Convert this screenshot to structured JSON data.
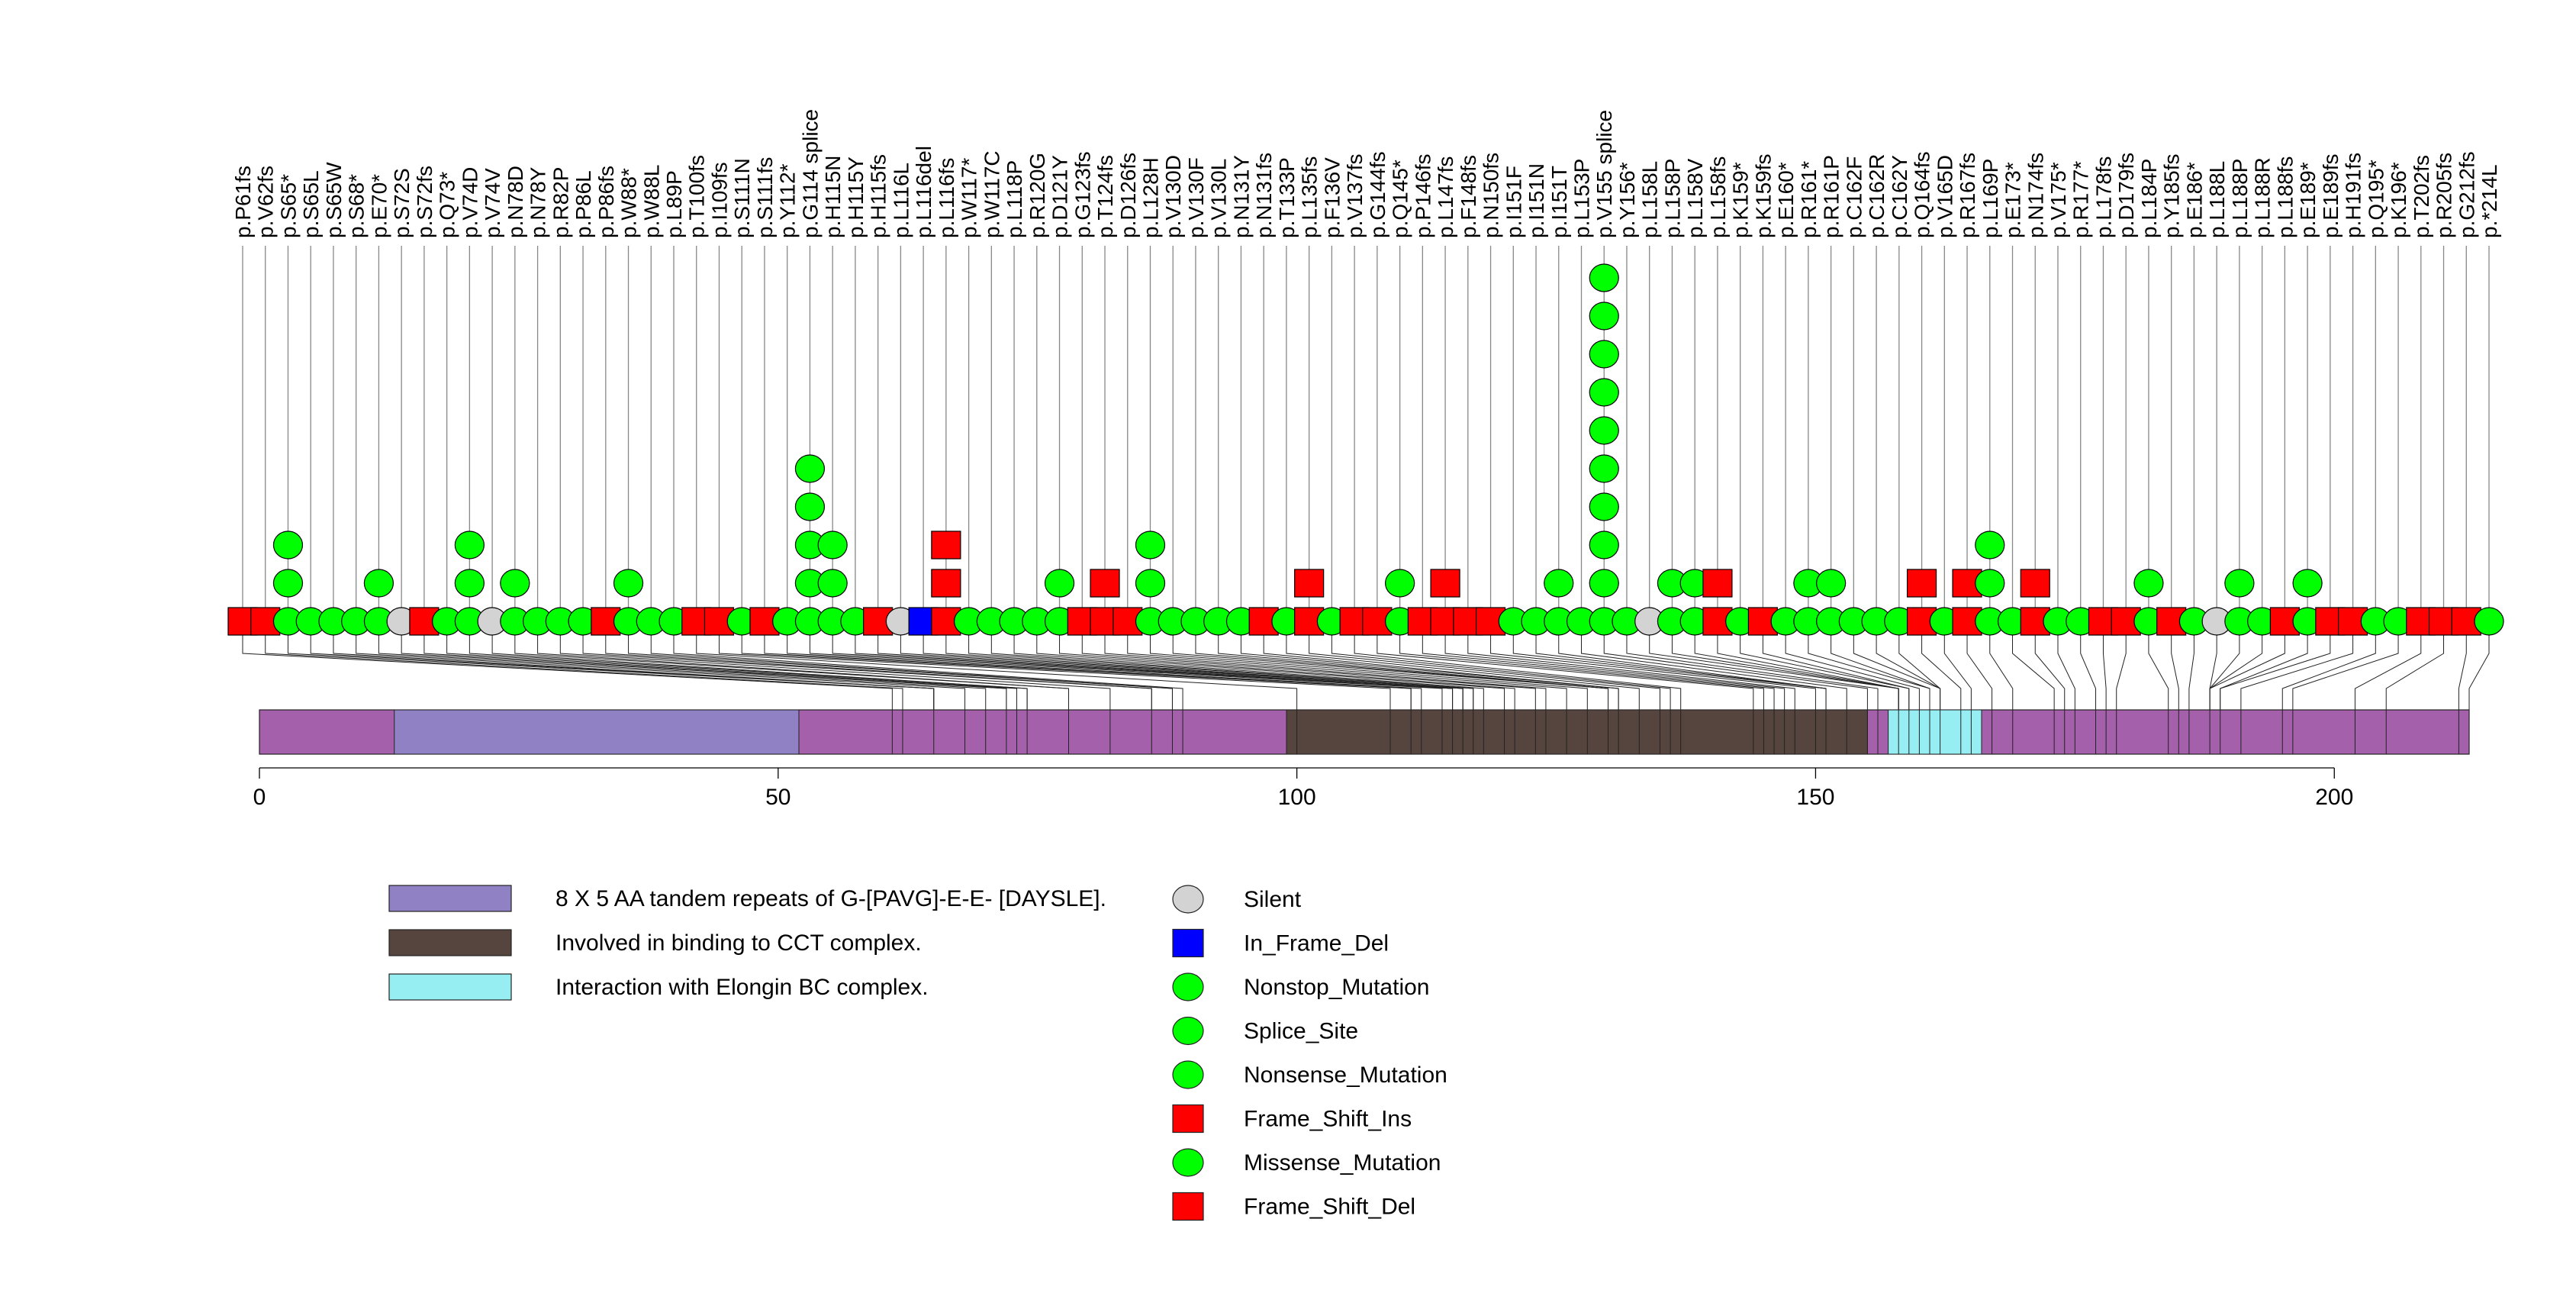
{
  "chart_data": {
    "type": "lollipop",
    "title": "",
    "xlabel": "",
    "ylabel": "",
    "x_ticks": [
      0,
      50,
      100,
      150,
      200
    ],
    "xlim": [
      0,
      213
    ],
    "protein_length": 213,
    "domains": [
      {
        "name": "8 X 5 AA tandem repeats of G-[PAVG]-E-E- [DAYSLE].",
        "start": 13,
        "end": 52,
        "color": "#9080C4"
      },
      {
        "name": "Involved in binding to CCT complex.",
        "start": 99,
        "end": 155,
        "color": "#56453E"
      },
      {
        "name": "Interaction with Elongin BC complex.",
        "start": 157,
        "end": 166,
        "color": "#96EEF2"
      }
    ],
    "mutation_types": [
      {
        "type": "Silent",
        "shape": "circle",
        "color": "#D3D3D3"
      },
      {
        "type": "In_Frame_Del",
        "shape": "square",
        "color": "#0000FF"
      },
      {
        "type": "Nonstop_Mutation",
        "shape": "circle",
        "color": "#00FF00"
      },
      {
        "type": "Splice_Site",
        "shape": "circle",
        "color": "#00FF00"
      },
      {
        "type": "Nonsense_Mutation",
        "shape": "circle",
        "color": "#00FF00"
      },
      {
        "type": "Frame_Shift_Ins",
        "shape": "square",
        "color": "#FF0000"
      },
      {
        "type": "Missense_Mutation",
        "shape": "circle",
        "color": "#00FF00"
      },
      {
        "type": "Frame_Shift_Del",
        "shape": "square",
        "color": "#FF0000"
      }
    ],
    "mutations": [
      {
        "label": "p.P61fs",
        "pos": 61,
        "type": "Frame_Shift_Del",
        "count": 1
      },
      {
        "label": "p.V62fs",
        "pos": 62,
        "type": "Frame_Shift_Del",
        "count": 1
      },
      {
        "label": "p.S65*",
        "pos": 65,
        "type": "Nonsense_Mutation",
        "count": 3
      },
      {
        "label": "p.S65L",
        "pos": 65,
        "type": "Missense_Mutation",
        "count": 1
      },
      {
        "label": "p.S65W",
        "pos": 65,
        "type": "Missense_Mutation",
        "count": 1
      },
      {
        "label": "p.S68*",
        "pos": 68,
        "type": "Nonsense_Mutation",
        "count": 1
      },
      {
        "label": "p.E70*",
        "pos": 70,
        "type": "Nonsense_Mutation",
        "count": 2
      },
      {
        "label": "p.S72S",
        "pos": 72,
        "type": "Silent",
        "count": 1
      },
      {
        "label": "p.S72fs",
        "pos": 72,
        "type": "Frame_Shift_Del",
        "count": 1
      },
      {
        "label": "p.Q73*",
        "pos": 73,
        "type": "Nonsense_Mutation",
        "count": 1
      },
      {
        "label": "p.V74D",
        "pos": 74,
        "type": "Missense_Mutation",
        "count": 3
      },
      {
        "label": "p.V74V",
        "pos": 74,
        "type": "Silent",
        "count": 1
      },
      {
        "label": "p.N78D",
        "pos": 78,
        "type": "Missense_Mutation",
        "count": 2
      },
      {
        "label": "p.N78Y",
        "pos": 78,
        "type": "Missense_Mutation",
        "count": 1
      },
      {
        "label": "p.R82P",
        "pos": 82,
        "type": "Missense_Mutation",
        "count": 1
      },
      {
        "label": "p.P86L",
        "pos": 86,
        "type": "Missense_Mutation",
        "count": 1
      },
      {
        "label": "p.P86fs",
        "pos": 86,
        "type": "Frame_Shift_Del",
        "count": 1
      },
      {
        "label": "p.W88*",
        "pos": 88,
        "type": "Nonsense_Mutation",
        "count": 2
      },
      {
        "label": "p.W88L",
        "pos": 88,
        "type": "Missense_Mutation",
        "count": 1
      },
      {
        "label": "p.L89P",
        "pos": 89,
        "type": "Missense_Mutation",
        "count": 1
      },
      {
        "label": "p.T100fs",
        "pos": 100,
        "type": "Frame_Shift_Del",
        "count": 1
      },
      {
        "label": "p.I109fs",
        "pos": 109,
        "type": "Frame_Shift_Del",
        "count": 1
      },
      {
        "label": "p.S111N",
        "pos": 111,
        "type": "Missense_Mutation",
        "count": 1
      },
      {
        "label": "p.S111fs",
        "pos": 111,
        "type": "Frame_Shift_Del",
        "count": 1
      },
      {
        "label": "p.Y112*",
        "pos": 112,
        "type": "Nonsense_Mutation",
        "count": 1
      },
      {
        "label": "p.G114_splice",
        "pos": 114,
        "type": "Splice_Site",
        "count": 5
      },
      {
        "label": "p.H115N",
        "pos": 115,
        "type": "Missense_Mutation",
        "count": 3
      },
      {
        "label": "p.H115Y",
        "pos": 115,
        "type": "Missense_Mutation",
        "count": 1
      },
      {
        "label": "p.H115fs",
        "pos": 115,
        "type": "Frame_Shift_Del",
        "count": 1
      },
      {
        "label": "p.L116L",
        "pos": 116,
        "type": "Silent",
        "count": 1
      },
      {
        "label": "p.L116del",
        "pos": 116,
        "type": "In_Frame_Del",
        "count": 1
      },
      {
        "label": "p.L116fs",
        "pos": 116,
        "type": "Frame_Shift_Ins",
        "count": 3
      },
      {
        "label": "p.W117*",
        "pos": 117,
        "type": "Nonsense_Mutation",
        "count": 1
      },
      {
        "label": "p.W117C",
        "pos": 117,
        "type": "Missense_Mutation",
        "count": 1
      },
      {
        "label": "p.L118P",
        "pos": 118,
        "type": "Missense_Mutation",
        "count": 1
      },
      {
        "label": "p.R120G",
        "pos": 120,
        "type": "Missense_Mutation",
        "count": 1
      },
      {
        "label": "p.D121Y",
        "pos": 121,
        "type": "Missense_Mutation",
        "count": 2
      },
      {
        "label": "p.G123fs",
        "pos": 123,
        "type": "Frame_Shift_Del",
        "count": 1
      },
      {
        "label": "p.T124fs",
        "pos": 124,
        "type": "Frame_Shift_Ins",
        "count": 2
      },
      {
        "label": "p.D126fs",
        "pos": 126,
        "type": "Frame_Shift_Del",
        "count": 1
      },
      {
        "label": "p.L128H",
        "pos": 128,
        "type": "Missense_Mutation",
        "count": 3
      },
      {
        "label": "p.V130D",
        "pos": 130,
        "type": "Missense_Mutation",
        "count": 1
      },
      {
        "label": "p.V130F",
        "pos": 130,
        "type": "Missense_Mutation",
        "count": 1
      },
      {
        "label": "p.V130L",
        "pos": 130,
        "type": "Missense_Mutation",
        "count": 1
      },
      {
        "label": "p.N131Y",
        "pos": 131,
        "type": "Missense_Mutation",
        "count": 1
      },
      {
        "label": "p.N131fs",
        "pos": 131,
        "type": "Frame_Shift_Del",
        "count": 1
      },
      {
        "label": "p.T133P",
        "pos": 133,
        "type": "Missense_Mutation",
        "count": 1
      },
      {
        "label": "p.L135fs",
        "pos": 135,
        "type": "Frame_Shift_Ins",
        "count": 2
      },
      {
        "label": "p.F136V",
        "pos": 136,
        "type": "Missense_Mutation",
        "count": 1
      },
      {
        "label": "p.V137fs",
        "pos": 137,
        "type": "Frame_Shift_Del",
        "count": 1
      },
      {
        "label": "p.G144fs",
        "pos": 144,
        "type": "Frame_Shift_Del",
        "count": 1
      },
      {
        "label": "p.Q145*",
        "pos": 145,
        "type": "Nonsense_Mutation",
        "count": 2
      },
      {
        "label": "p.P146fs",
        "pos": 146,
        "type": "Frame_Shift_Del",
        "count": 1
      },
      {
        "label": "p.L147fs",
        "pos": 147,
        "type": "Frame_Shift_Ins",
        "count": 2
      },
      {
        "label": "p.F148fs",
        "pos": 148,
        "type": "Frame_Shift_Del",
        "count": 1
      },
      {
        "label": "p.N150fs",
        "pos": 150,
        "type": "Frame_Shift_Del",
        "count": 1
      },
      {
        "label": "p.I151F",
        "pos": 151,
        "type": "Missense_Mutation",
        "count": 1
      },
      {
        "label": "p.I151N",
        "pos": 151,
        "type": "Missense_Mutation",
        "count": 1
      },
      {
        "label": "p.I151T",
        "pos": 151,
        "type": "Missense_Mutation",
        "count": 2
      },
      {
        "label": "p.L153P",
        "pos": 153,
        "type": "Missense_Mutation",
        "count": 1
      },
      {
        "label": "p.V155_splice",
        "pos": 155,
        "type": "Splice_Site",
        "count": 10
      },
      {
        "label": "p.Y156*",
        "pos": 156,
        "type": "Nonsense_Mutation",
        "count": 1
      },
      {
        "label": "p.L158L",
        "pos": 158,
        "type": "Silent",
        "count": 1
      },
      {
        "label": "p.L158P",
        "pos": 158,
        "type": "Missense_Mutation",
        "count": 2
      },
      {
        "label": "p.L158V",
        "pos": 158,
        "type": "Missense_Mutation",
        "count": 2
      },
      {
        "label": "p.L158fs",
        "pos": 158,
        "type": "Frame_Shift_Ins",
        "count": 2
      },
      {
        "label": "p.K159*",
        "pos": 159,
        "type": "Nonsense_Mutation",
        "count": 1
      },
      {
        "label": "p.K159fs",
        "pos": 159,
        "type": "Frame_Shift_Del",
        "count": 1
      },
      {
        "label": "p.E160*",
        "pos": 160,
        "type": "Nonsense_Mutation",
        "count": 1
      },
      {
        "label": "p.R161*",
        "pos": 161,
        "type": "Nonsense_Mutation",
        "count": 2
      },
      {
        "label": "p.R161P",
        "pos": 161,
        "type": "Missense_Mutation",
        "count": 2
      },
      {
        "label": "p.C162F",
        "pos": 162,
        "type": "Missense_Mutation",
        "count": 1
      },
      {
        "label": "p.C162R",
        "pos": 162,
        "type": "Missense_Mutation",
        "count": 1
      },
      {
        "label": "p.C162Y",
        "pos": 162,
        "type": "Missense_Mutation",
        "count": 1
      },
      {
        "label": "p.Q164fs",
        "pos": 164,
        "type": "Frame_Shift_Ins",
        "count": 2
      },
      {
        "label": "p.V165D",
        "pos": 165,
        "type": "Missense_Mutation",
        "count": 1
      },
      {
        "label": "p.R167fs",
        "pos": 167,
        "type": "Frame_Shift_Ins",
        "count": 2
      },
      {
        "label": "p.L169P",
        "pos": 169,
        "type": "Missense_Mutation",
        "count": 3
      },
      {
        "label": "p.E173*",
        "pos": 173,
        "type": "Nonsense_Mutation",
        "count": 1
      },
      {
        "label": "p.N174fs",
        "pos": 174,
        "type": "Frame_Shift_Ins",
        "count": 2
      },
      {
        "label": "p.V175*",
        "pos": 175,
        "type": "Nonsense_Mutation",
        "count": 1
      },
      {
        "label": "p.R177*",
        "pos": 177,
        "type": "Nonsense_Mutation",
        "count": 1
      },
      {
        "label": "p.L178fs",
        "pos": 178,
        "type": "Frame_Shift_Del",
        "count": 1
      },
      {
        "label": "p.D179fs",
        "pos": 179,
        "type": "Frame_Shift_Del",
        "count": 1
      },
      {
        "label": "p.L184P",
        "pos": 184,
        "type": "Missense_Mutation",
        "count": 2
      },
      {
        "label": "p.Y185fs",
        "pos": 185,
        "type": "Frame_Shift_Del",
        "count": 1
      },
      {
        "label": "p.E186*",
        "pos": 186,
        "type": "Nonsense_Mutation",
        "count": 1
      },
      {
        "label": "p.L188L",
        "pos": 188,
        "type": "Silent",
        "count": 1
      },
      {
        "label": "p.L188P",
        "pos": 188,
        "type": "Missense_Mutation",
        "count": 2
      },
      {
        "label": "p.L188R",
        "pos": 188,
        "type": "Missense_Mutation",
        "count": 1
      },
      {
        "label": "p.L188fs",
        "pos": 188,
        "type": "Frame_Shift_Del",
        "count": 1
      },
      {
        "label": "p.E189*",
        "pos": 189,
        "type": "Nonsense_Mutation",
        "count": 2
      },
      {
        "label": "p.E189fs",
        "pos": 189,
        "type": "Frame_Shift_Del",
        "count": 1
      },
      {
        "label": "p.H191fs",
        "pos": 191,
        "type": "Frame_Shift_Del",
        "count": 1
      },
      {
        "label": "p.Q195*",
        "pos": 195,
        "type": "Nonsense_Mutation",
        "count": 1
      },
      {
        "label": "p.K196*",
        "pos": 196,
        "type": "Nonsense_Mutation",
        "count": 1
      },
      {
        "label": "p.T202fs",
        "pos": 202,
        "type": "Frame_Shift_Del",
        "count": 1
      },
      {
        "label": "p.R205fs",
        "pos": 205,
        "type": "Frame_Shift_Del",
        "count": 1
      },
      {
        "label": "p.G212fs",
        "pos": 212,
        "type": "Frame_Shift_Del",
        "count": 1
      },
      {
        "label": "p.*214L",
        "pos": 214,
        "type": "Nonstop_Mutation",
        "count": 1
      }
    ]
  }
}
